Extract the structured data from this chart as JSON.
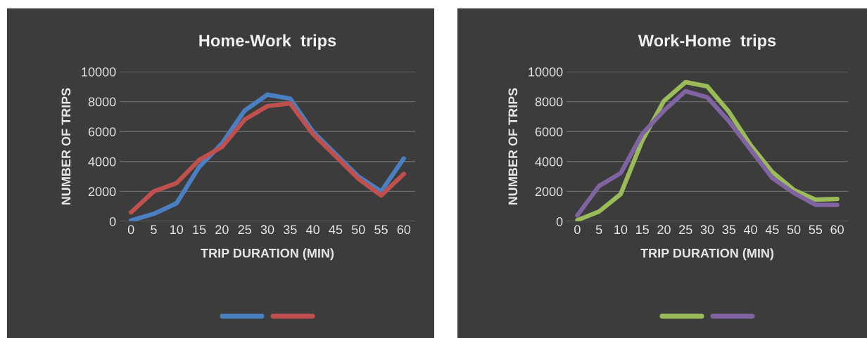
{
  "chart_data": [
    {
      "type": "line",
      "title": "Home-Work  trips",
      "xlabel": "TRIP DURATION (MIN)",
      "ylabel": "NUMBER OF TRIPS",
      "categories": [
        "0",
        "5",
        "10",
        "15",
        "20",
        "25",
        "30",
        "35",
        "40",
        "45",
        "50",
        "55",
        "60"
      ],
      "series": [
        {
          "color": "#4a7fc1",
          "values": [
            60,
            500,
            1200,
            3640,
            5200,
            7400,
            8470,
            8200,
            6000,
            4500,
            3000,
            2000,
            4200
          ]
        },
        {
          "color": "#c0504d",
          "values": [
            600,
            2000,
            2550,
            4100,
            4970,
            6800,
            7700,
            7880,
            5840,
            4350,
            2850,
            1730,
            3170
          ]
        }
      ],
      "ylim": [
        0,
        10000
      ],
      "yticks": [
        0,
        2000,
        4000,
        6000,
        8000,
        10000
      ],
      "grid": "y",
      "marker": "none",
      "line_style": "solid"
    },
    {
      "type": "line",
      "title": "Work-Home  trips",
      "xlabel": "TRIP DURATION (MIN)",
      "ylabel": "NUMBER OF TRIPS",
      "categories": [
        "0",
        "5",
        "10",
        "15",
        "20",
        "25",
        "30",
        "35",
        "40",
        "45",
        "50",
        "55",
        "60"
      ],
      "series": [
        {
          "color": "#9bbb59",
          "values": [
            80,
            650,
            1820,
            5400,
            8050,
            9300,
            9020,
            7320,
            5100,
            3300,
            2100,
            1450,
            1500
          ]
        },
        {
          "color": "#8064a2",
          "values": [
            400,
            2360,
            3220,
            5850,
            7400,
            8700,
            8290,
            6700,
            4800,
            2900,
            1900,
            1100,
            1100
          ]
        }
      ],
      "ylim": [
        0,
        10000
      ],
      "yticks": [
        0,
        2000,
        4000,
        6000,
        8000,
        10000
      ],
      "grid": "y",
      "marker": "none",
      "line_style": "solid"
    }
  ]
}
